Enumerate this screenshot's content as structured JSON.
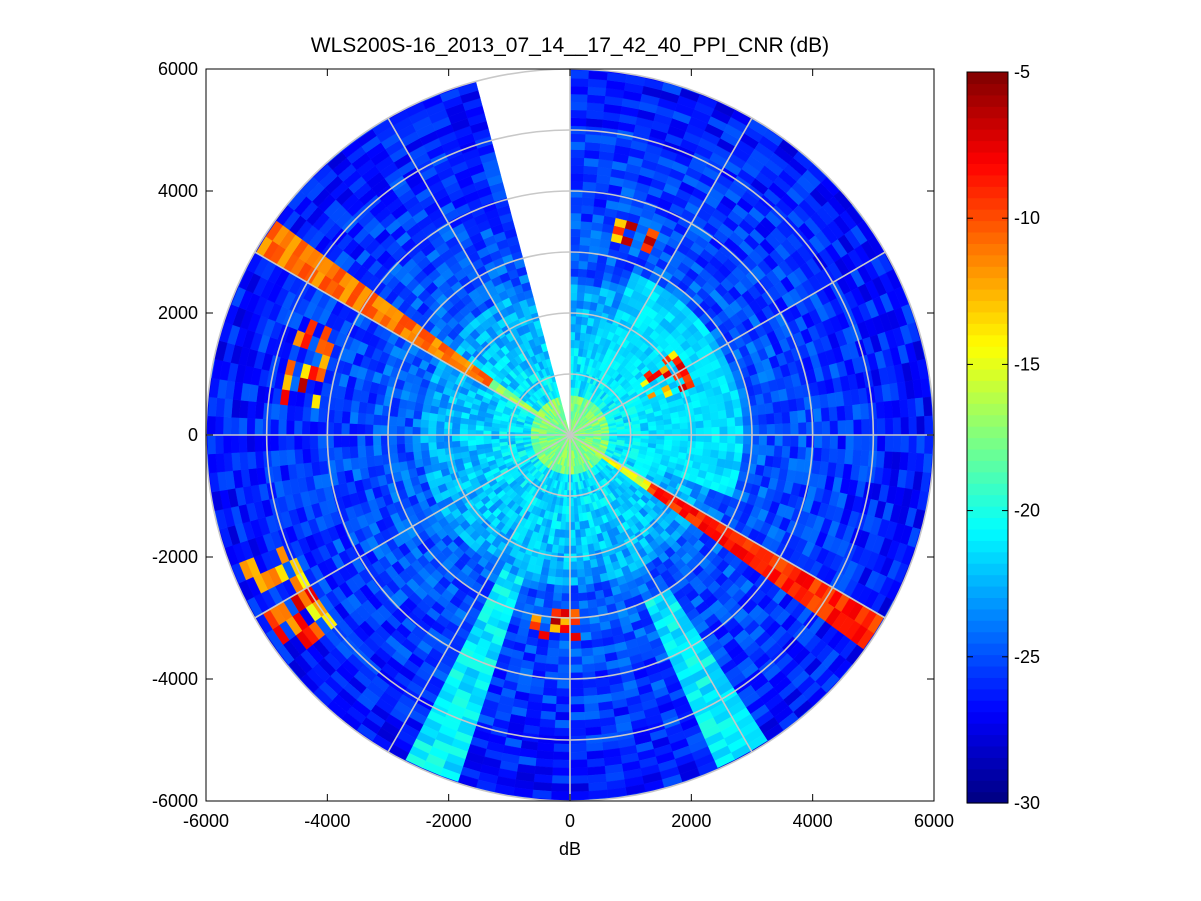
{
  "chart_data": {
    "type": "heatmap",
    "subtype": "polar-ppi",
    "title": "WLS200S-16_2013_07_14__17_42_40_PPI_CNR (dB)",
    "xlabel": "dB",
    "ylabel": "",
    "xlim": [
      -6000,
      6000
    ],
    "ylim": [
      -6000,
      6000
    ],
    "xticks": [
      -6000,
      -4000,
      -2000,
      0,
      2000,
      4000,
      6000
    ],
    "yticks": [
      6000,
      4000,
      2000,
      0,
      -2000,
      -4000,
      -6000
    ],
    "xtick_labels": [
      "-6000",
      "-4000",
      "-2000",
      "0",
      "2000",
      "4000",
      "6000"
    ],
    "ytick_labels": [
      "6000",
      "4000",
      "2000",
      "0",
      "-2000",
      "-4000",
      "-6000"
    ],
    "max_range": 6000,
    "range_rings": [
      1000,
      2000,
      3000,
      4000,
      5000,
      6000
    ],
    "spokes_deg": [
      0,
      30,
      60,
      90,
      120,
      150,
      180,
      210,
      240,
      270,
      300,
      330
    ],
    "missing_sector_deg": [
      -15,
      0
    ],
    "colorbar": {
      "min": -30,
      "max": -5,
      "ticks": [
        -5,
        -10,
        -15,
        -20,
        -25,
        -30
      ],
      "tick_labels": [
        "-5",
        "-10",
        "-15",
        "-20",
        "-25",
        "-30"
      ],
      "colormap": "jet"
    },
    "features": [
      {
        "name": "high-cnr-beam-nw",
        "azimuth_deg": -56,
        "width_deg": 6,
        "range": [
          0,
          6000
        ],
        "value": -11
      },
      {
        "name": "high-cnr-beam-se",
        "azimuth_deg": 124,
        "width_deg": 6,
        "range": [
          0,
          6000
        ],
        "value": -9
      },
      {
        "name": "cyan-wedge-sw",
        "azimuth_deg": 203,
        "width_deg": 10,
        "range": [
          2500,
          6000
        ],
        "value": -21
      },
      {
        "name": "cyan-wedge-s",
        "azimuth_deg": 151,
        "width_deg": 8,
        "range": [
          3000,
          6000
        ],
        "value": -21
      },
      {
        "name": "echo-cluster-w",
        "azimuth_deg": 285,
        "range": [
          4200,
          4800
        ],
        "value": -6
      },
      {
        "name": "echo-cluster-sw",
        "azimuth_deg": 240,
        "range": [
          5000,
          5800
        ],
        "value": -7
      },
      {
        "name": "echo-cluster-s",
        "azimuth_deg": 185,
        "range": [
          2800,
          3400
        ],
        "value": -6
      },
      {
        "name": "echo-cluster-ne",
        "azimuth_deg": 20,
        "range": [
          3300,
          3700
        ],
        "value": -6
      },
      {
        "name": "echo-cluster-e",
        "azimuth_deg": 60,
        "range": [
          1400,
          2200
        ],
        "value": -7
      }
    ]
  }
}
